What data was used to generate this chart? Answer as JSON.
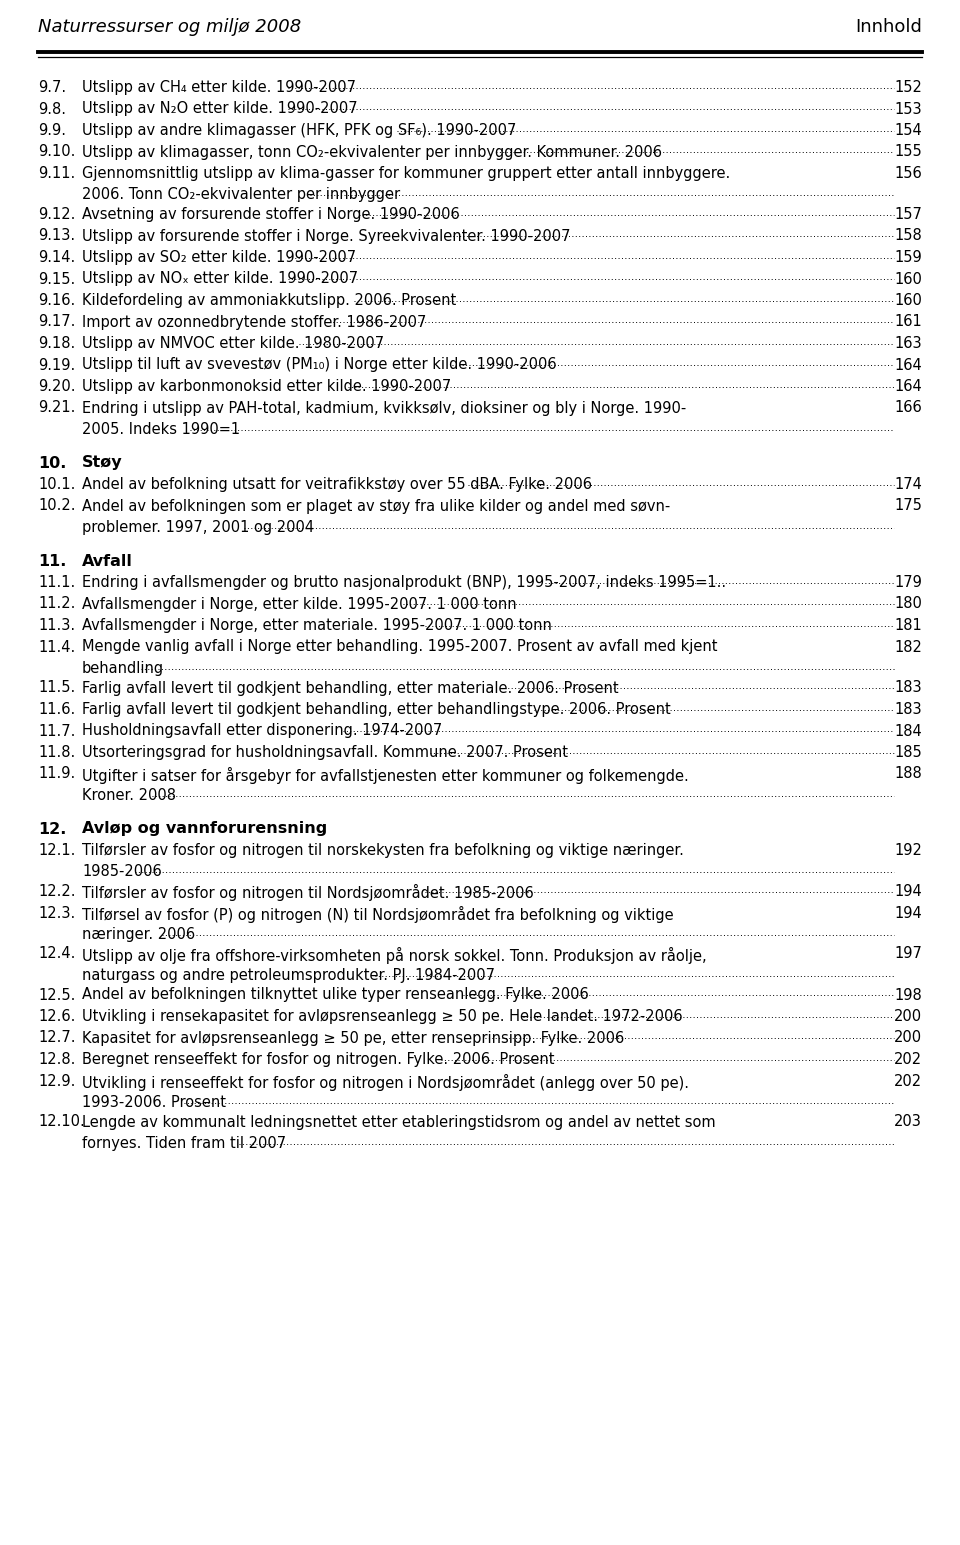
{
  "header_left": "Naturressurser og miljø 2008",
  "header_right": "Innhold",
  "bg_color": "#ffffff",
  "text_color": "#000000",
  "header_font_size": 13,
  "body_font_size": 10.5,
  "bold_font_size": 11.5,
  "entries": [
    {
      "num": "9.7.",
      "bold": false,
      "text": "Utslipp av CH₄ etter kilde. 1990-2007",
      "page": "152",
      "multiline": false
    },
    {
      "num": "9.8.",
      "bold": false,
      "text": "Utslipp av N₂O etter kilde. 1990-2007",
      "page": "153",
      "multiline": false
    },
    {
      "num": "9.9.",
      "bold": false,
      "text": "Utslipp av andre klimagasser (HFK, PFK og SF₆). 1990-2007",
      "page": "154",
      "multiline": false
    },
    {
      "num": "9.10.",
      "bold": false,
      "text": "Utslipp av klimagasser, tonn CO₂-ekvivalenter per innbygger. Kommuner. 2006",
      "page": "155",
      "multiline": false
    },
    {
      "num": "9.11.",
      "bold": false,
      "text": "Gjennomsnittlig utslipp av klima-gasser for kommuner gruppert etter antall innbyggere.\n2006. Tonn CO₂-ekvivalenter per innbygger",
      "page": "156",
      "multiline": true
    },
    {
      "num": "9.12.",
      "bold": false,
      "text": "Avsetning av forsurende stoffer i Norge. 1990-2006",
      "page": "157",
      "multiline": false
    },
    {
      "num": "9.13.",
      "bold": false,
      "text": "Utslipp av forsurende stoffer i Norge. Syreekvivalenter. 1990-2007",
      "page": "158",
      "multiline": false
    },
    {
      "num": "9.14.",
      "bold": false,
      "text": "Utslipp av SO₂ etter kilde. 1990-2007",
      "page": "159",
      "multiline": false
    },
    {
      "num": "9.15.",
      "bold": false,
      "text": "Utslipp av NOₓ etter kilde. 1990-2007",
      "page": "160",
      "multiline": false
    },
    {
      "num": "9.16.",
      "bold": false,
      "text": "Kildefordeling av ammoniakkutslipp. 2006. Prosent",
      "page": "160",
      "multiline": false
    },
    {
      "num": "9.17.",
      "bold": false,
      "text": "Import av ozonnedbrytende stoffer. 1986-2007",
      "page": "161",
      "multiline": false
    },
    {
      "num": "9.18.",
      "bold": false,
      "text": "Utslipp av NMVOC etter kilde. 1980-2007",
      "page": "163",
      "multiline": false
    },
    {
      "num": "9.19.",
      "bold": false,
      "text": "Utslipp til luft av svevestøv (PM₁₀) i Norge etter kilde. 1990-2006",
      "page": "164",
      "multiline": false
    },
    {
      "num": "9.20.",
      "bold": false,
      "text": "Utslipp av karbonmonoksid etter kilde. 1990-2007",
      "page": "164",
      "multiline": false
    },
    {
      "num": "9.21.",
      "bold": false,
      "text": "Endring i utslipp av PAH-total, kadmium, kvikksølv, dioksiner og bly i Norge. 1990-\n2005. Indeks 1990=1",
      "page": "166",
      "multiline": true
    },
    {
      "num": "10.",
      "bold": true,
      "text": "Støy",
      "page": "",
      "multiline": false,
      "section": true
    },
    {
      "num": "10.1.",
      "bold": false,
      "text": "Andel av befolkning utsatt for veitrafikkstøy over 55 dBA. Fylke. 2006",
      "page": "174",
      "multiline": false
    },
    {
      "num": "10.2.",
      "bold": false,
      "text": "Andel av befolkningen som er plaget av støy fra ulike kilder og andel med søvn-\nproblemer. 1997, 2001 og 2004",
      "page": "175",
      "multiline": true
    },
    {
      "num": "11.",
      "bold": true,
      "text": "Avfall",
      "page": "",
      "multiline": false,
      "section": true
    },
    {
      "num": "11.1.",
      "bold": false,
      "text": "Endring i avfallsmengder og brutto nasjonalprodukt (BNP), 1995-2007, indeks 1995=1..",
      "page": "179",
      "multiline": false
    },
    {
      "num": "11.2.",
      "bold": false,
      "text": "Avfallsmengder i Norge, etter kilde. 1995-2007. 1 000 tonn",
      "page": "180",
      "multiline": false
    },
    {
      "num": "11.3.",
      "bold": false,
      "text": "Avfallsmengder i Norge, etter materiale. 1995-2007. 1 000 tonn",
      "page": "181",
      "multiline": false
    },
    {
      "num": "11.4.",
      "bold": false,
      "text": "Mengde vanlig avfall i Norge etter behandling. 1995-2007. Prosent av avfall med kjent\nbehandling",
      "page": "182",
      "multiline": true
    },
    {
      "num": "11.5.",
      "bold": false,
      "text": "Farlig avfall levert til godkjent behandling, etter materiale. 2006. Prosent",
      "page": "183",
      "multiline": false
    },
    {
      "num": "11.6.",
      "bold": false,
      "text": "Farlig avfall levert til godkjent behandling, etter behandlingstype. 2006. Prosent",
      "page": "183",
      "multiline": false
    },
    {
      "num": "11.7.",
      "bold": false,
      "text": "Husholdningsavfall etter disponering. 1974-2007",
      "page": "184",
      "multiline": false
    },
    {
      "num": "11.8.",
      "bold": false,
      "text": "Utsorteringsgrad for husholdningsavfall. Kommune. 2007. Prosent",
      "page": "185",
      "multiline": false
    },
    {
      "num": "11.9.",
      "bold": false,
      "text": "Utgifter i satser for årsgebyr for avfallstjenesten etter kommuner og folkemengde.\nKroner. 2008",
      "page": "188",
      "multiline": true
    },
    {
      "num": "12.",
      "bold": true,
      "text": "Avløp og vannforurensning",
      "page": "",
      "multiline": false,
      "section": true
    },
    {
      "num": "12.1.",
      "bold": false,
      "text": "Tilførsler av fosfor og nitrogen til norskekysten fra befolkning og viktige næringer.\n1985-2006",
      "page": "192",
      "multiline": true
    },
    {
      "num": "12.2.",
      "bold": false,
      "text": "Tilførsler av fosfor og nitrogen til Nordsjøområdet. 1985-2006",
      "page": "194",
      "multiline": false
    },
    {
      "num": "12.3.",
      "bold": false,
      "text": "Tilførsel av fosfor (P) og nitrogen (N) til Nordsjøområdet fra befolkning og viktige\nnæringer. 2006",
      "page": "194",
      "multiline": true
    },
    {
      "num": "12.4.",
      "bold": false,
      "text": "Utslipp av olje fra offshore-virksomheten på norsk sokkel. Tonn. Produksjon av råolje,\nnaturgass og andre petroleumsprodukter. PJ. 1984-2007",
      "page": "197",
      "multiline": true
    },
    {
      "num": "12.5.",
      "bold": false,
      "text": "Andel av befolkningen tilknyttet ulike typer renseanlegg. Fylke. 2006",
      "page": "198",
      "multiline": false
    },
    {
      "num": "12.6.",
      "bold": false,
      "text": "Utvikling i rensekapasitet for avløpsrenseanlegg ≥ 50 pe. Hele landet. 1972-2006",
      "page": "200",
      "multiline": false
    },
    {
      "num": "12.7.",
      "bold": false,
      "text": "Kapasitet for avløpsrenseanlegg ≥ 50 pe, etter renseprinsipp. Fylke. 2006",
      "page": "200",
      "multiline": false
    },
    {
      "num": "12.8.",
      "bold": false,
      "text": "Beregnet renseeffekt for fosfor og nitrogen. Fylke. 2006. Prosent",
      "page": "202",
      "multiline": false
    },
    {
      "num": "12.9.",
      "bold": false,
      "text": "Utvikling i renseeffekt for fosfor og nitrogen i Nordsjøområdet (anlegg over 50 pe).\n1993-2006. Prosent",
      "page": "202",
      "multiline": true
    },
    {
      "num": "12.10.",
      "bold": false,
      "text": "Lengde av kommunalt ledningsnettet etter etableringstidsrom og andel av nettet som\nfornyes. Tiden fram til 2007",
      "page": "203",
      "multiline": true
    }
  ]
}
